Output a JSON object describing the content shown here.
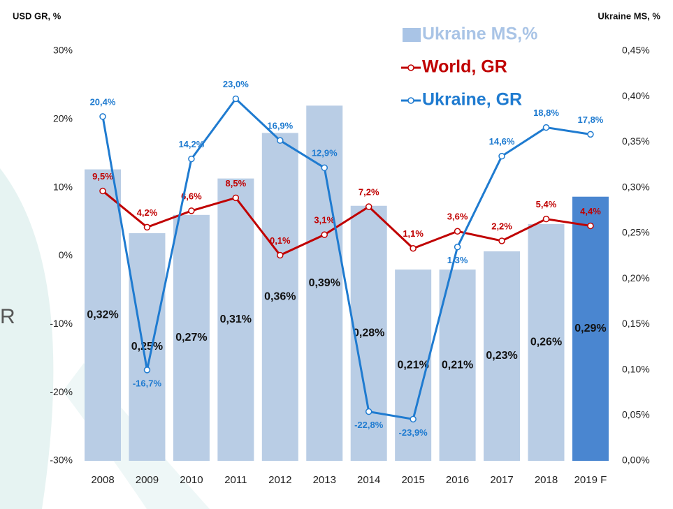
{
  "chart_data": {
    "type": "bar",
    "y_title": "USD GR, %",
    "y2_title": "Ukraine MS, %",
    "side_text": "R",
    "categories": [
      "2008",
      "2009",
      "2010",
      "2011",
      "2012",
      "2013",
      "2014",
      "2015",
      "2016",
      "2017",
      "2018",
      "2019 F"
    ],
    "ylim": [
      -30,
      30
    ],
    "yticks": [
      {
        "value": -30,
        "label": "-30%"
      },
      {
        "value": -20,
        "label": "-20%"
      },
      {
        "value": -10,
        "label": "-10%"
      },
      {
        "value": 0,
        "label": "0%"
      },
      {
        "value": 10,
        "label": "10%"
      },
      {
        "value": 20,
        "label": "20%"
      },
      {
        "value": 30,
        "label": "30%"
      }
    ],
    "y2lim": [
      0,
      0.45
    ],
    "y2ticks": [
      {
        "value": 0,
        "label": "0,00%"
      },
      {
        "value": 0.05,
        "label": "0,05%"
      },
      {
        "value": 0.1,
        "label": "0,10%"
      },
      {
        "value": 0.15,
        "label": "0,15%"
      },
      {
        "value": 0.2,
        "label": "0,20%"
      },
      {
        "value": 0.25,
        "label": "0,25%"
      },
      {
        "value": 0.3,
        "label": "0,30%"
      },
      {
        "value": 0.35,
        "label": "0,35%"
      },
      {
        "value": 0.4,
        "label": "0,40%"
      },
      {
        "value": 0.45,
        "label": "0,45%"
      }
    ],
    "grid": false,
    "series": [
      {
        "name": "Ukraine MS,%",
        "type": "bar",
        "axis": "y2",
        "color": "#a9c4e6",
        "colors": [
          "#b9cde5",
          "#b9cde5",
          "#b9cde5",
          "#b9cde5",
          "#b9cde5",
          "#b9cde5",
          "#b9cde5",
          "#b9cde5",
          "#b9cde5",
          "#b9cde5",
          "#b9cde5",
          "#4a86d0"
        ],
        "values": [
          0.32,
          0.25,
          0.27,
          0.31,
          0.36,
          0.39,
          0.28,
          0.21,
          0.21,
          0.23,
          0.26,
          0.29
        ],
        "value_labels": [
          "0,32%",
          "0,25%",
          "0,27%",
          "0,31%",
          "0,36%",
          "0,39%",
          "0,28%",
          "0,21%",
          "0,21%",
          "0,23%",
          "0,26%",
          "0,29%"
        ]
      },
      {
        "name": "World, GR",
        "type": "line",
        "color": "#c00000",
        "values": [
          9.5,
          4.2,
          6.6,
          8.5,
          0.1,
          3.1,
          7.2,
          1.1,
          3.6,
          2.2,
          5.4,
          4.4
        ],
        "value_labels": [
          "9,5%",
          "4,2%",
          "6,6%",
          "8,5%",
          "0,1%",
          "3,1%",
          "7,2%",
          "1,1%",
          "3,6%",
          "2,2%",
          "5,4%",
          "4,4%"
        ]
      },
      {
        "name": "Ukraine, GR",
        "type": "line",
        "color": "#1f7bd0",
        "values": [
          20.4,
          -16.7,
          14.2,
          23.0,
          16.9,
          12.9,
          -22.8,
          -23.9,
          1.3,
          14.6,
          18.8,
          17.8
        ],
        "value_labels": [
          "20,4%",
          "-16,7%",
          "14,2%",
          "23,0%",
          "16,9%",
          "12,9%",
          "-22,8%",
          "-23,9%",
          "1,3%",
          "14,6%",
          "18,8%",
          "17,8%"
        ]
      }
    ]
  }
}
